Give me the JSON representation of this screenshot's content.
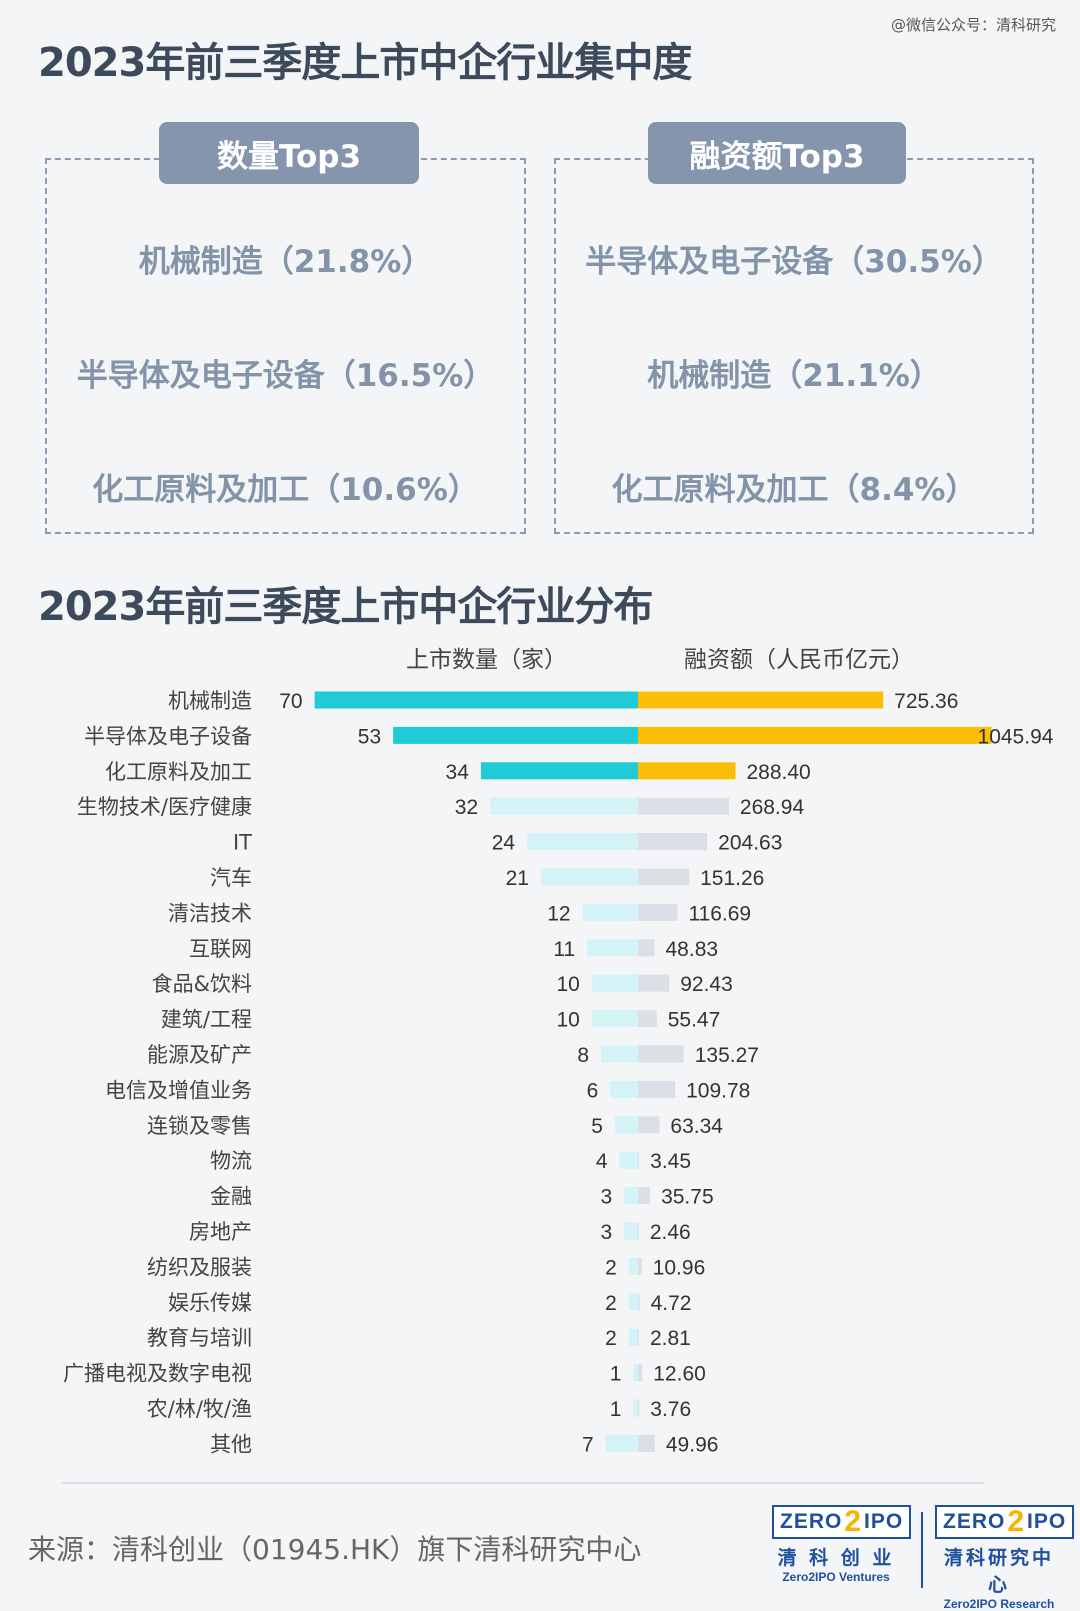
{
  "watermark": "@微信公众号：清科研究",
  "section1": {
    "title": "2023年前三季度上市中企行业集中度",
    "left": {
      "badge": "数量Top3",
      "items": [
        "机械制造（21.8%）",
        "半导体及电子设备（16.5%）",
        "化工原料及加工（10.6%）"
      ]
    },
    "right": {
      "badge": "融资额Top3",
      "items": [
        "半导体及电子设备（30.5%）",
        "机械制造（21.1%）",
        "化工原料及加工（8.4%）"
      ]
    }
  },
  "section2": {
    "title": "2023年前三季度上市中企行业分布",
    "left_header": "上市数量（家）",
    "right_header": "融资额（人民币亿元）"
  },
  "colors": {
    "count_highlight": "#1ecbd6",
    "count_light": "#d4f3f6",
    "amount_highlight": "#fbbd08",
    "amount_light": "#dcdfe6",
    "title": "#3d4a5c",
    "panel_text": "#8293aa",
    "badge_bg": "#8595ae"
  },
  "chart_data": {
    "type": "bar",
    "orientation": "horizontal-diverging",
    "categories": [
      "机械制造",
      "半导体及电子设备",
      "化工原料及加工",
      "生物技术/医疗健康",
      "IT",
      "汽车",
      "清洁技术",
      "互联网",
      "食品&饮料",
      "建筑/工程",
      "能源及矿产",
      "电信及增值业务",
      "连锁及零售",
      "物流",
      "金融",
      "房地产",
      "纺织及服装",
      "娱乐传媒",
      "教育与培训",
      "广播电视及数字电视",
      "农/林/牧/渔",
      "其他"
    ],
    "series": [
      {
        "name": "上市数量（家）",
        "values": [
          70,
          53,
          34,
          32,
          24,
          21,
          12,
          11,
          10,
          10,
          8,
          6,
          5,
          4,
          3,
          3,
          2,
          2,
          2,
          1,
          1,
          7
        ],
        "labels": [
          "70",
          "53",
          "34",
          "32",
          "24",
          "21",
          "12",
          "11",
          "10",
          "10",
          "8",
          "6",
          "5",
          "4",
          "3",
          "3",
          "2",
          "2",
          "2",
          "1",
          "1",
          "7"
        ]
      },
      {
        "name": "融资额（人民币亿元）",
        "values": [
          725.36,
          1045.94,
          288.4,
          268.94,
          204.63,
          151.26,
          116.69,
          48.83,
          92.43,
          55.47,
          135.27,
          109.78,
          63.34,
          3.45,
          35.75,
          2.46,
          10.96,
          4.72,
          2.81,
          12.6,
          3.76,
          49.96
        ],
        "labels": [
          "725.36",
          "1045.94",
          "288.40",
          "268.94",
          "204.63",
          "151.26",
          "116.69",
          "48.83",
          "92.43",
          "55.47",
          "135.27",
          "109.78",
          "63.34",
          "3.45",
          "35.75",
          "2.46",
          "10.96",
          "4.72",
          "2.81",
          "12.60",
          "3.76",
          "49.96"
        ]
      }
    ],
    "highlight_top": 3
  },
  "footer": {
    "source": "来源：清科创业（01945.HK）旗下清科研究中心",
    "logo1": {
      "left": "ZERO",
      "mid": "2",
      "right": "IPO",
      "cn": "清 科 创 业",
      "en": "Zero2IPO Ventures"
    },
    "logo2": {
      "left": "ZERO",
      "mid": "2",
      "right": "IPO",
      "cn": "清科研究中心",
      "en": "Zero2IPO Research"
    }
  }
}
